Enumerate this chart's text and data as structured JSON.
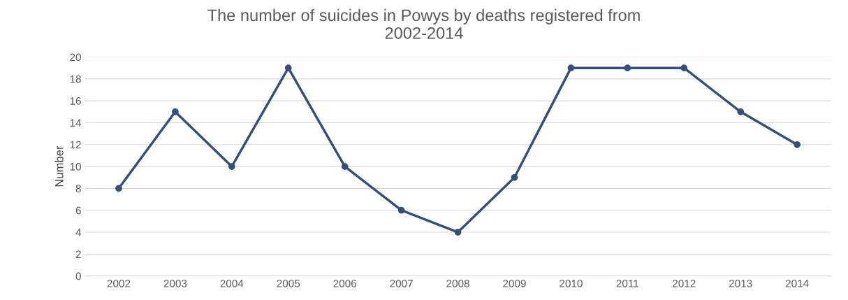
{
  "chart_data": {
    "type": "line",
    "title": "The number of suicides in Powys by deaths registered from\n2002-2014",
    "ylabel": "Number",
    "categories": [
      "2002",
      "2003",
      "2004",
      "2005",
      "2006",
      "2007",
      "2008",
      "2009",
      "2010",
      "2011",
      "2012",
      "2013",
      "2014"
    ],
    "series": [
      {
        "color": "#34507a",
        "values": [
          8,
          15,
          10,
          19,
          10,
          6,
          4,
          9,
          19,
          19,
          19,
          15,
          12
        ]
      }
    ],
    "ylim": [
      0,
      20
    ],
    "yticks": [
      0,
      2,
      4,
      6,
      8,
      10,
      12,
      14,
      16,
      18,
      20
    ],
    "grid": "y",
    "marker": "circle",
    "line_style": "solid"
  }
}
